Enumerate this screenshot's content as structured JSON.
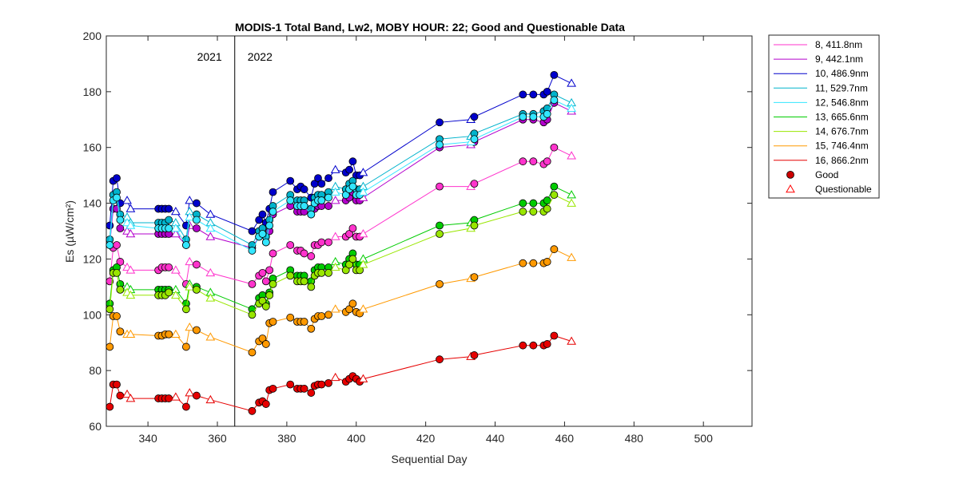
{
  "chart_data": {
    "type": "line",
    "title": "MODIS-1 Total Band,  Lw2, MOBY HOUR: 22;  Good and Questionable Data",
    "xlabel": "Sequential Day",
    "ylabel": "Es (µW/cm²)",
    "xlim": [
      328,
      514
    ],
    "ylim": [
      60,
      200
    ],
    "xticks": [
      340,
      360,
      380,
      400,
      420,
      440,
      460,
      480,
      500
    ],
    "yticks": [
      60,
      80,
      100,
      120,
      140,
      160,
      180,
      200
    ],
    "grid": false,
    "legend_position": "outside-right",
    "year_divider_x": 365,
    "year_labels": [
      "2021",
      "2022"
    ],
    "x": [
      329,
      330,
      331,
      332,
      334,
      335,
      343,
      344,
      345,
      346,
      348,
      351,
      352,
      354,
      358,
      370,
      372,
      373,
      374,
      375,
      376,
      381,
      383,
      384,
      385,
      387,
      388,
      389,
      390,
      392,
      394,
      397,
      398,
      399,
      400,
      401,
      402,
      424,
      433,
      434,
      448,
      451,
      454,
      455,
      457,
      462
    ],
    "quality": [
      "G",
      "G",
      "G",
      "G",
      "Q",
      "Q",
      "G",
      "G",
      "G",
      "G",
      "Q",
      "G",
      "Q",
      "G",
      "Q",
      "G",
      "G",
      "G",
      "G",
      "G",
      "G",
      "G",
      "G",
      "G",
      "G",
      "G",
      "G",
      "G",
      "G",
      "G",
      "Q",
      "G",
      "G",
      "G",
      "G",
      "G",
      "Q",
      "G",
      "Q",
      "G",
      "G",
      "G",
      "G",
      "G",
      "G",
      "Q"
    ],
    "series": [
      {
        "name": "8, 411.8nm",
        "color": "#ff33cc",
        "values": [
          112,
          124,
          125,
          119,
          117,
          116,
          116,
          117,
          117,
          117,
          116,
          111,
          119,
          118,
          115,
          111,
          114,
          115,
          112,
          116,
          122,
          125,
          123,
          123,
          122,
          121,
          125,
          125,
          126,
          126,
          128,
          128,
          129,
          131,
          128,
          128,
          129,
          146,
          146,
          147,
          155,
          155,
          154,
          155,
          160,
          157
        ]
      },
      {
        "name": "9, 442.1nm",
        "color": "#b300cc",
        "values": [
          125,
          138,
          138,
          131,
          130,
          129,
          129,
          129,
          129,
          129,
          129,
          125,
          132,
          131,
          128,
          124,
          128,
          129,
          126,
          130,
          136,
          139,
          137,
          137,
          137,
          136,
          138,
          139,
          139,
          139,
          141,
          141,
          142,
          144,
          141,
          141,
          142,
          160,
          161,
          162,
          170,
          170,
          169,
          170,
          176,
          173
        ]
      },
      {
        "name": "10, 486.9nm",
        "color": "#0000cc",
        "values": [
          132,
          148,
          149,
          140,
          141,
          138,
          138,
          138,
          138,
          138,
          137,
          132,
          141,
          140,
          136,
          130,
          134,
          136,
          133,
          138,
          144,
          148,
          145,
          146,
          145,
          142,
          147,
          149,
          147,
          149,
          152,
          151,
          152,
          155,
          150,
          150,
          151,
          169,
          170,
          171,
          179,
          179,
          179,
          180,
          186,
          183
        ]
      },
      {
        "name": "11, 529.7nm",
        "color": "#00b3cc",
        "values": [
          127,
          143,
          144,
          136,
          135,
          133,
          133,
          133,
          133,
          134,
          133,
          127,
          137,
          136,
          133,
          125,
          130,
          131,
          128,
          134,
          139,
          143,
          141,
          141,
          141,
          138,
          142,
          143,
          143,
          144,
          146,
          145,
          147,
          148,
          145,
          145,
          146,
          163,
          164,
          165,
          172,
          172,
          173,
          174,
          179,
          176
        ]
      },
      {
        "name": "12, 546.8nm",
        "color": "#33e6ff",
        "values": [
          125,
          141,
          142,
          134,
          133,
          132,
          131,
          131,
          131,
          131,
          131,
          125,
          135,
          134,
          131,
          123,
          128,
          129,
          126,
          132,
          137,
          141,
          139,
          139,
          139,
          136,
          140,
          141,
          141,
          142,
          144,
          143,
          145,
          146,
          143,
          143,
          144,
          161,
          162,
          163,
          171,
          171,
          171,
          172,
          177,
          174
        ]
      },
      {
        "name": "13, 665.6nm",
        "color": "#00cc00",
        "values": [
          104,
          116,
          117,
          111,
          110,
          109,
          109,
          109,
          109,
          109,
          109,
          104,
          111,
          110,
          108,
          102,
          106,
          107,
          104,
          108,
          113,
          116,
          114,
          114,
          114,
          112,
          116,
          117,
          117,
          117,
          119,
          118,
          120,
          122,
          118,
          118,
          120,
          132,
          133,
          134,
          140,
          140,
          140,
          141,
          146,
          143
        ]
      },
      {
        "name": "14, 676.7nm",
        "color": "#99e600",
        "values": [
          102,
          115,
          115,
          109,
          108,
          107,
          107,
          107,
          107,
          108,
          107,
          102,
          110,
          109,
          106,
          100,
          104,
          105,
          103,
          107,
          111,
          114,
          112,
          112,
          112,
          110,
          114,
          115,
          115,
          115,
          117,
          116,
          118,
          120,
          116,
          116,
          118,
          129,
          131,
          132,
          137,
          137,
          137,
          138,
          143,
          140
        ]
      },
      {
        "name": "15, 746.4nm",
        "color": "#ff9900",
        "values": [
          88.5,
          99.5,
          99.5,
          94,
          93,
          93,
          92.5,
          92.5,
          93,
          93,
          93,
          88.5,
          95.5,
          94.5,
          92,
          86.5,
          90.5,
          91.5,
          89.5,
          97,
          97.5,
          99,
          97.5,
          97.5,
          97.5,
          95,
          98.5,
          99.5,
          99.5,
          100,
          102,
          101,
          102,
          104,
          101,
          100.5,
          102,
          111,
          113,
          113.5,
          118.5,
          118.5,
          118.5,
          119,
          123.5,
          120.5
        ]
      },
      {
        "name": "16, 866.2nm",
        "color": "#e60000",
        "values": [
          67,
          75,
          75,
          71,
          71.5,
          70,
          70,
          70,
          70,
          70,
          70.5,
          67,
          72,
          71,
          69.5,
          65.5,
          68.5,
          69,
          68,
          73,
          73.5,
          75,
          73.5,
          73.5,
          73.5,
          72,
          74.5,
          75,
          75,
          75.5,
          77.5,
          76,
          77,
          78,
          77,
          76,
          77,
          84,
          85,
          85.5,
          89,
          89,
          89,
          89.5,
          92.5,
          90.5
        ]
      }
    ],
    "legend_markers": [
      {
        "name": "Good",
        "marker": "filled-circle",
        "color": "#cc0000"
      },
      {
        "name": "Questionable",
        "marker": "open-triangle",
        "color": "#ff0000"
      }
    ]
  }
}
